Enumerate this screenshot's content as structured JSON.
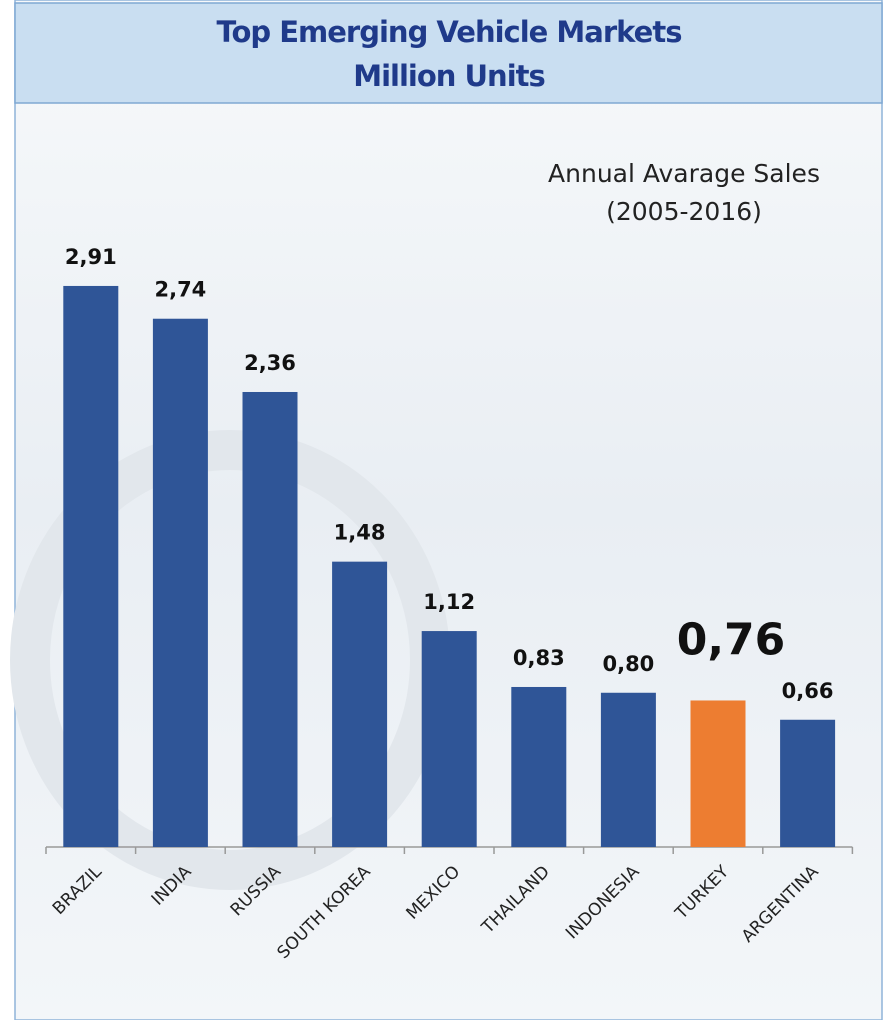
{
  "chart_data": {
    "type": "bar",
    "title": "Top Emerging Vehicle Markets",
    "subtitle": "Million Units",
    "annotation": [
      "Annual Avarage Sales",
      "(2005-2016)"
    ],
    "categories": [
      "BRAZIL",
      "INDIA",
      "RUSSIA",
      "SOUTH KOREA",
      "MEXICO",
      "THAILAND",
      "INDONESIA",
      "TURKEY",
      "ARGENTINA"
    ],
    "values": [
      2.91,
      2.74,
      2.36,
      1.48,
      1.12,
      0.83,
      0.8,
      0.76,
      0.66
    ],
    "value_labels": [
      "2,91",
      "2,74",
      "2,36",
      "1,48",
      "1,12",
      "0,83",
      "0,80",
      "0,76",
      "0,66"
    ],
    "colors": [
      "#2f5597",
      "#2f5597",
      "#2f5597",
      "#2f5597",
      "#2f5597",
      "#2f5597",
      "#2f5597",
      "#ed7d31",
      "#2f5597"
    ]
  }
}
